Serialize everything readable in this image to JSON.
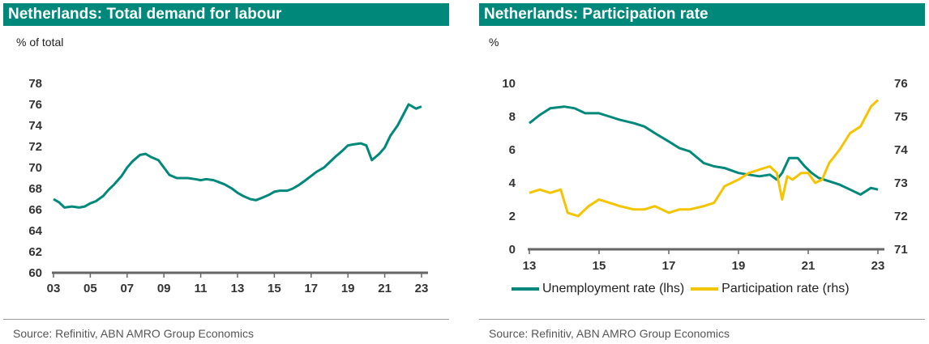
{
  "colors": {
    "teal": "#00897b",
    "gold": "#f5c400",
    "axis": "#666666"
  },
  "chart_data": [
    {
      "type": "line",
      "title": "Netherlands: Total demand for labour",
      "ylabel": "% of total",
      "ylim": [
        60,
        78
      ],
      "yticks": [
        "60",
        "62",
        "64",
        "66",
        "68",
        "70",
        "72",
        "74",
        "76",
        "78"
      ],
      "xlim": [
        2003,
        2023
      ],
      "xticks": [
        "03",
        "05",
        "07",
        "09",
        "11",
        "13",
        "15",
        "17",
        "19",
        "21",
        "23"
      ],
      "source": "Source: Refinitiv, ABN AMRO Group Economics",
      "series": [
        {
          "x": [
            2003.0,
            2003.3,
            2003.6,
            2004.0,
            2004.4,
            2004.7,
            2005.0,
            2005.3,
            2005.7,
            2006.0,
            2006.3,
            2006.7,
            2007.0,
            2007.3,
            2007.7,
            2008.0,
            2008.3,
            2008.7,
            2009.0,
            2009.3,
            2009.7,
            2010.0,
            2010.3,
            2010.7,
            2011.0,
            2011.3,
            2011.7,
            2012.0,
            2012.3,
            2012.7,
            2013.0,
            2013.3,
            2013.7,
            2014.0,
            2014.3,
            2014.7,
            2015.0,
            2015.3,
            2015.7,
            2016.0,
            2016.3,
            2016.7,
            2017.0,
            2017.3,
            2017.7,
            2018.0,
            2018.3,
            2018.7,
            2019.0,
            2019.3,
            2019.7,
            2020.0,
            2020.3,
            2020.7,
            2021.0,
            2021.3,
            2021.7,
            2022.0,
            2022.3,
            2022.7,
            2023.0
          ],
          "values": [
            67.0,
            66.7,
            66.2,
            66.3,
            66.2,
            66.3,
            66.6,
            66.8,
            67.3,
            67.9,
            68.4,
            69.2,
            70.0,
            70.6,
            71.2,
            71.3,
            71.0,
            70.7,
            70.0,
            69.3,
            69.0,
            69.0,
            69.0,
            68.9,
            68.8,
            68.9,
            68.8,
            68.6,
            68.4,
            68.0,
            67.6,
            67.3,
            67.0,
            66.9,
            67.1,
            67.4,
            67.7,
            67.8,
            67.8,
            68.0,
            68.3,
            68.8,
            69.2,
            69.6,
            70.0,
            70.5,
            71.0,
            71.6,
            72.1,
            72.2,
            72.3,
            72.1,
            70.7,
            71.3,
            71.9,
            73.0,
            74.0,
            75.0,
            76.0,
            75.6,
            75.8
          ]
        }
      ]
    },
    {
      "type": "line",
      "title": "Netherlands: Participation rate",
      "ylabel": "%",
      "ylim": [
        0,
        10
      ],
      "yticks": [
        "0",
        "2",
        "4",
        "6",
        "8",
        "10"
      ],
      "y2lim": [
        71,
        76
      ],
      "y2ticks": [
        "71",
        "72",
        "73",
        "74",
        "75",
        "76"
      ],
      "xlim": [
        2013,
        2023
      ],
      "xticks": [
        "13",
        "15",
        "17",
        "19",
        "21",
        "23"
      ],
      "source": "Source: Refinitiv, ABN AMRO Group Economics",
      "series": [
        {
          "name": "Unemployment rate (lhs)",
          "axis": "left",
          "x": [
            2013.0,
            2013.3,
            2013.6,
            2014.0,
            2014.3,
            2014.6,
            2015.0,
            2015.3,
            2015.6,
            2016.0,
            2016.3,
            2016.6,
            2017.0,
            2017.3,
            2017.6,
            2018.0,
            2018.3,
            2018.6,
            2019.0,
            2019.3,
            2019.6,
            2019.9,
            2020.1,
            2020.25,
            2020.45,
            2020.7,
            2020.9,
            2021.1,
            2021.3,
            2021.6,
            2021.9,
            2022.2,
            2022.5,
            2022.8,
            2023.0
          ],
          "values": [
            7.6,
            8.1,
            8.5,
            8.6,
            8.5,
            8.2,
            8.2,
            8.0,
            7.8,
            7.6,
            7.4,
            7.0,
            6.5,
            6.1,
            5.9,
            5.2,
            5.0,
            4.9,
            4.6,
            4.5,
            4.4,
            4.5,
            4.2,
            4.6,
            5.5,
            5.5,
            5.0,
            4.6,
            4.3,
            4.1,
            3.9,
            3.6,
            3.3,
            3.7,
            3.6
          ]
        },
        {
          "name": "Participation rate (rhs)",
          "axis": "right",
          "x": [
            2013.0,
            2013.3,
            2013.6,
            2013.9,
            2014.1,
            2014.4,
            2014.7,
            2015.0,
            2015.3,
            2015.6,
            2016.0,
            2016.3,
            2016.6,
            2017.0,
            2017.3,
            2017.6,
            2018.0,
            2018.3,
            2018.6,
            2019.0,
            2019.3,
            2019.6,
            2019.9,
            2020.1,
            2020.25,
            2020.4,
            2020.55,
            2020.8,
            2021.0,
            2021.2,
            2021.4,
            2021.6,
            2021.9,
            2022.2,
            2022.5,
            2022.8,
            2023.0
          ],
          "values": [
            72.7,
            72.8,
            72.7,
            72.8,
            72.1,
            72.0,
            72.3,
            72.5,
            72.4,
            72.3,
            72.2,
            72.2,
            72.3,
            72.1,
            72.2,
            72.2,
            72.3,
            72.4,
            72.9,
            73.1,
            73.3,
            73.4,
            73.5,
            73.3,
            72.5,
            73.2,
            73.1,
            73.3,
            73.3,
            73.0,
            73.1,
            73.6,
            74.0,
            74.5,
            74.7,
            75.3,
            75.5
          ]
        }
      ]
    }
  ]
}
